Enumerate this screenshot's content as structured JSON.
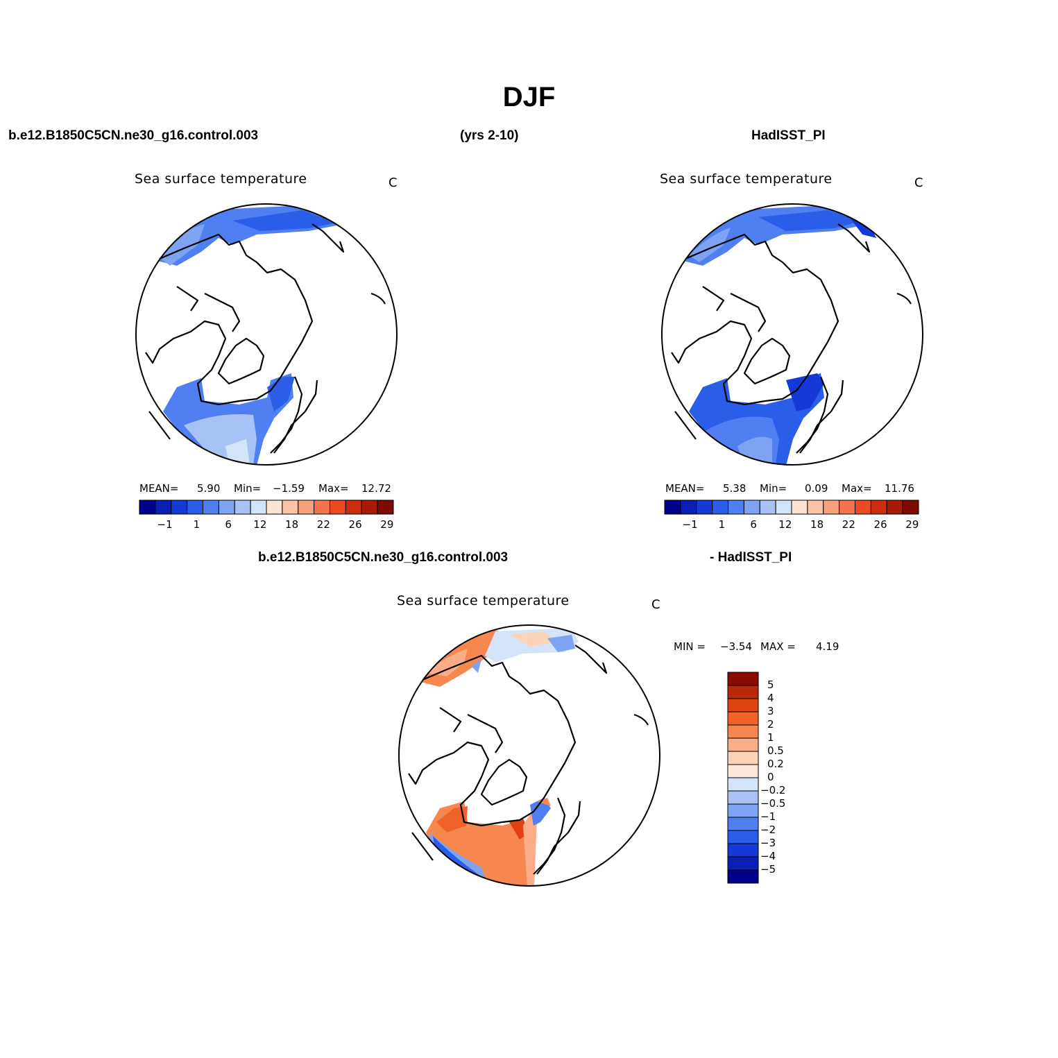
{
  "figure": {
    "title": "DJF",
    "case_name": "b.e12.B1850C5CN.ne30_g16.control.003",
    "years": "(yrs 2-10)",
    "obs_name": "HadISST_PI",
    "diff_case_name": "b.e12.B1850C5CN.ne30_g16.control.003",
    "diff_obs_name": "- HadISST_PI"
  },
  "panels": {
    "model": {
      "title": "Sea surface temperature",
      "units": "C",
      "stats": {
        "mean_label": "MEAN=",
        "mean": "5.90",
        "min_label": "Min=",
        "min": "−1.59",
        "max_label": "Max=",
        "max": "12.72"
      }
    },
    "obs": {
      "title": "Sea surface temperature",
      "units": "C",
      "stats": {
        "mean_label": "MEAN=",
        "mean": "5.38",
        "min_label": "Min=",
        "min": "0.09",
        "max_label": "Max=",
        "max": "11.76"
      }
    },
    "diff": {
      "title": "Sea surface temperature",
      "units": "C",
      "stats": {
        "min_label": "MIN =",
        "min": "−3.54",
        "max_label": "MAX =",
        "max": "4.19"
      }
    }
  },
  "colorbars": {
    "abs": {
      "colors": [
        "#00008b",
        "#0a1fb4",
        "#1539d6",
        "#2a5ee8",
        "#4f7ff0",
        "#7fa3f3",
        "#a9c2f5",
        "#d3e4f8",
        "#fde4d2",
        "#fbc4a6",
        "#f9a07c",
        "#f5744c",
        "#ec4a21",
        "#cc2c10",
        "#a81a08",
        "#7f0a02"
      ],
      "tick_labels": [
        "−1",
        "1",
        "6",
        "12",
        "18",
        "22",
        "26",
        "29"
      ]
    },
    "diff": {
      "colors": [
        "#00008b",
        "#0a1fb4",
        "#1539d6",
        "#2a5ee8",
        "#4f7ff0",
        "#7fa3f3",
        "#a9c2f5",
        "#d3e4f8",
        "#fde8dc",
        "#fcd2b8",
        "#f9ad88",
        "#f6884f",
        "#f0622a",
        "#df4210",
        "#b8290a",
        "#8b0a02"
      ],
      "tick_labels": [
        "5",
        "4",
        "3",
        "2",
        "1",
        "0.5",
        "0.2",
        "0",
        "−0.2",
        "−0.5",
        "−1",
        "−2",
        "−3",
        "−4",
        "−5"
      ]
    }
  }
}
